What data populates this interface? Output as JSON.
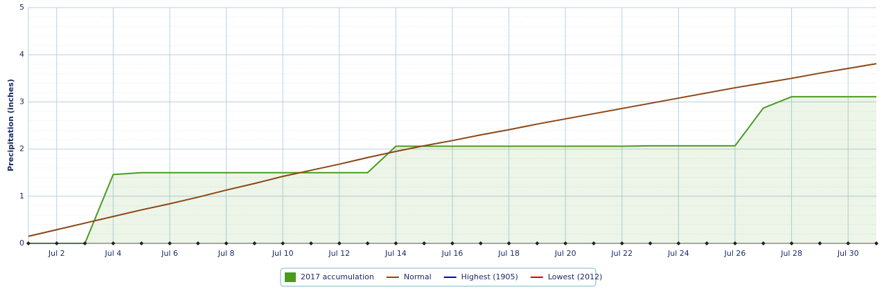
{
  "chart_data": {
    "type": "line",
    "ylabel": "Precipitation (inches)",
    "categories": [
      null,
      "Jul 2",
      null,
      "Jul 4",
      null,
      "Jul 6",
      null,
      "Jul 8",
      null,
      "Jul 10",
      null,
      "Jul 12",
      null,
      "Jul 14",
      null,
      "Jul 16",
      null,
      "Jul 18",
      null,
      "Jul 20",
      null,
      "Jul 22",
      null,
      "Jul 24",
      null,
      "Jul 26",
      null,
      "Jul 28",
      null,
      "Jul 30",
      null
    ],
    "series": [
      {
        "name": "2017 accumulation",
        "color": "#4a9a1e",
        "area": true,
        "values": [
          0,
          0,
          0,
          1.46,
          1.5,
          1.5,
          1.5,
          1.5,
          1.5,
          1.5,
          1.5,
          1.5,
          1.5,
          2.06,
          2.06,
          2.06,
          2.06,
          2.06,
          2.06,
          2.06,
          2.06,
          2.06,
          2.07,
          2.07,
          2.07,
          2.07,
          2.87,
          3.11,
          3.11,
          3.11,
          3.11
        ]
      },
      {
        "name": "Normal",
        "color": "#8b4513",
        "values": [
          0.15,
          0.29,
          0.43,
          0.57,
          0.71,
          0.84,
          0.98,
          1.13,
          1.27,
          1.42,
          1.55,
          1.68,
          1.82,
          1.95,
          2.07,
          2.18,
          2.3,
          2.41,
          2.53,
          2.64,
          2.75,
          2.86,
          2.97,
          3.08,
          3.19,
          3.3,
          3.4,
          3.5,
          3.61,
          3.71,
          3.81
        ]
      },
      {
        "name": "Highest (1905)",
        "color": "#0000cc",
        "values": [
          null,
          null,
          null,
          null,
          null,
          null,
          null,
          null,
          null,
          null,
          null,
          null,
          null,
          null,
          null,
          null,
          null,
          null,
          null,
          null,
          null,
          null,
          null,
          null,
          null,
          null,
          null,
          null,
          null,
          null,
          null
        ]
      },
      {
        "name": "Lowest (2012)",
        "color": "#e00000",
        "values": [
          null,
          null,
          null,
          null,
          null,
          null,
          null,
          null,
          null,
          null,
          null,
          null,
          null,
          null,
          null,
          null,
          null,
          null,
          null,
          null,
          null,
          null,
          null,
          null,
          null,
          null,
          null,
          null,
          null,
          null,
          null
        ]
      }
    ],
    "ylim": [
      0,
      5
    ],
    "yticks": [
      0,
      1,
      2,
      3,
      4,
      5
    ],
    "grid": true,
    "minor_grid": true,
    "legend": "bottom"
  }
}
